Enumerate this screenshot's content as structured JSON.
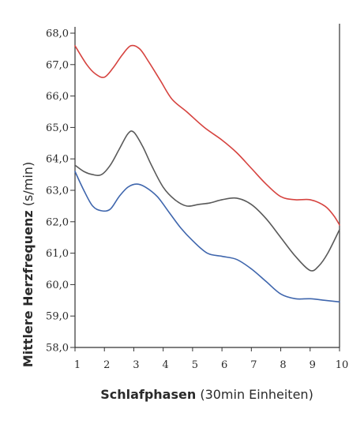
{
  "chart_data": {
    "type": "line",
    "xlabel_bold": "Schlafphasen",
    "xlabel_rest": " (30min Einheiten)",
    "ylabel_bold": "Mittlere Herzfrequenz",
    "ylabel_rest": " (s/min)",
    "xlim": [
      1,
      10
    ],
    "ylim": [
      58.0,
      68.0
    ],
    "x_ticks": [
      "1",
      "2",
      "3",
      "4",
      "5",
      "6",
      "7",
      "8",
      "9",
      "10"
    ],
    "y_ticks": [
      "58,0",
      "59,0",
      "60,0",
      "61,0",
      "62,0",
      "63,0",
      "64,0",
      "65,0",
      "66,0",
      "67,0",
      "68,0"
    ],
    "grid": false,
    "series": [
      {
        "color": "#d6433f",
        "x": [
          1.0,
          1.4,
          1.7,
          2.0,
          2.3,
          2.6,
          2.9,
          3.2,
          3.5,
          3.9,
          4.3,
          4.8,
          5.4,
          6.0,
          6.5,
          7.0,
          7.5,
          8.0,
          8.5,
          9.0,
          9.5,
          9.8,
          10.0
        ],
        "y": [
          67.6,
          67.0,
          66.7,
          66.6,
          66.9,
          67.3,
          67.6,
          67.5,
          67.1,
          66.5,
          65.9,
          65.5,
          65.0,
          64.6,
          64.2,
          63.7,
          63.2,
          62.8,
          62.7,
          62.7,
          62.5,
          62.2,
          61.9
        ]
      },
      {
        "color": "#5a5a5a",
        "x": [
          1.0,
          1.3,
          1.6,
          1.9,
          2.2,
          2.5,
          2.8,
          3.0,
          3.3,
          3.6,
          4.0,
          4.4,
          4.8,
          5.2,
          5.6,
          6.0,
          6.5,
          7.0,
          7.5,
          8.0,
          8.5,
          9.0,
          9.3,
          9.6,
          10.0
        ],
        "y": [
          63.8,
          63.6,
          63.5,
          63.5,
          63.8,
          64.3,
          64.8,
          64.85,
          64.4,
          63.8,
          63.1,
          62.7,
          62.5,
          62.55,
          62.6,
          62.7,
          62.75,
          62.55,
          62.1,
          61.5,
          60.9,
          60.45,
          60.6,
          61.0,
          61.75
        ]
      },
      {
        "color": "#3f66ad",
        "x": [
          1.0,
          1.3,
          1.6,
          1.9,
          2.2,
          2.5,
          2.8,
          3.1,
          3.4,
          3.8,
          4.2,
          4.6,
          5.0,
          5.5,
          6.0,
          6.5,
          7.0,
          7.5,
          8.0,
          8.5,
          9.0,
          9.5,
          10.0
        ],
        "y": [
          63.6,
          63.0,
          62.5,
          62.35,
          62.4,
          62.8,
          63.1,
          63.2,
          63.1,
          62.8,
          62.3,
          61.8,
          61.4,
          61.0,
          60.9,
          60.8,
          60.5,
          60.1,
          59.7,
          59.55,
          59.55,
          59.5,
          59.45
        ]
      }
    ]
  }
}
